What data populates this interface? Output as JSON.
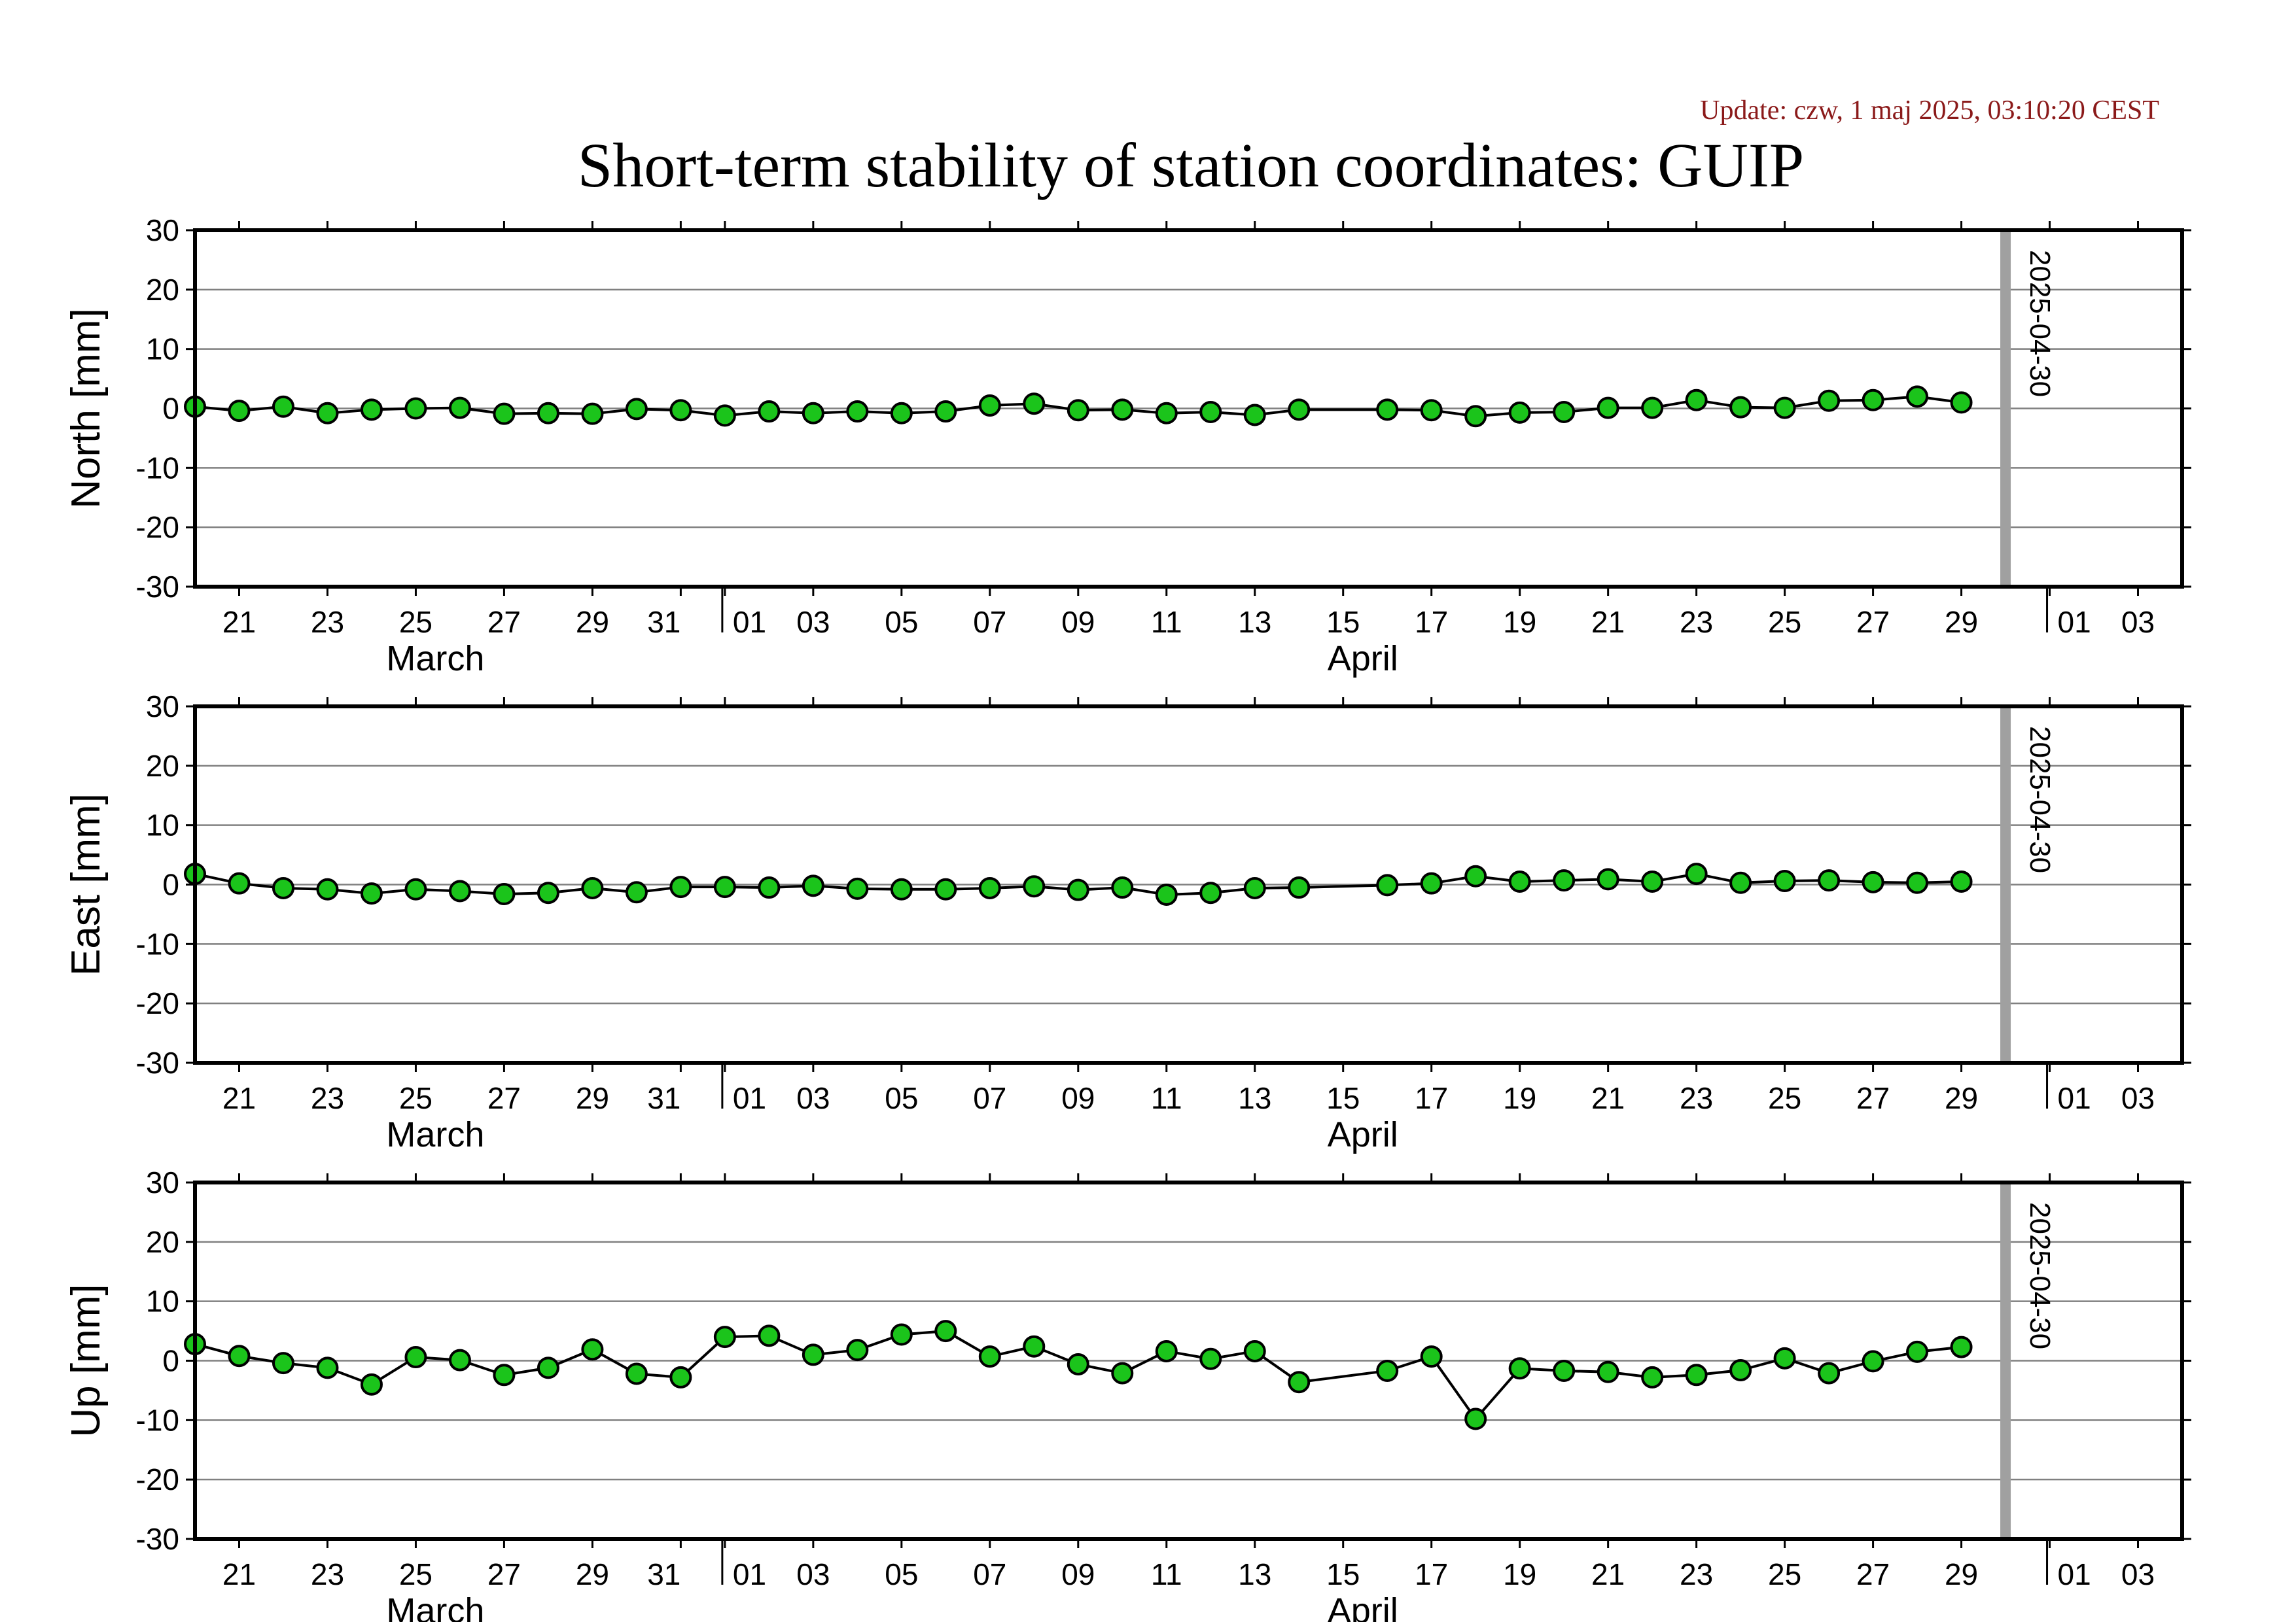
{
  "update_text": "Update: czw, 1 maj 2025, 03:10:20 CEST",
  "title": "Short-term stability of station coordinates: GUIP",
  "colors": {
    "marker_fill": "#1bc41b",
    "marker_edge": "#000000",
    "line": "#000000",
    "grid": "#808080",
    "vline": "#a0a0a0",
    "update_text": "#8b1a1a"
  },
  "x_axis": {
    "range": [
      "2025-03-20",
      "2025-05-04"
    ],
    "tick_labels": [
      {
        "date": "2025-03-21",
        "label": "21"
      },
      {
        "date": "2025-03-23",
        "label": "23"
      },
      {
        "date": "2025-03-25",
        "label": "25"
      },
      {
        "date": "2025-03-27",
        "label": "27"
      },
      {
        "date": "2025-03-29",
        "label": "29"
      },
      {
        "date": "2025-03-31",
        "label": "31"
      },
      {
        "date": "2025-04-01",
        "label": "01"
      },
      {
        "date": "2025-04-03",
        "label": "03"
      },
      {
        "date": "2025-04-05",
        "label": "05"
      },
      {
        "date": "2025-04-07",
        "label": "07"
      },
      {
        "date": "2025-04-09",
        "label": "09"
      },
      {
        "date": "2025-04-11",
        "label": "11"
      },
      {
        "date": "2025-04-13",
        "label": "13"
      },
      {
        "date": "2025-04-15",
        "label": "15"
      },
      {
        "date": "2025-04-17",
        "label": "17"
      },
      {
        "date": "2025-04-19",
        "label": "19"
      },
      {
        "date": "2025-04-21",
        "label": "21"
      },
      {
        "date": "2025-04-23",
        "label": "23"
      },
      {
        "date": "2025-04-25",
        "label": "25"
      },
      {
        "date": "2025-04-27",
        "label": "27"
      },
      {
        "date": "2025-04-29",
        "label": "29"
      },
      {
        "date": "2025-05-01",
        "label": "01"
      },
      {
        "date": "2025-05-03",
        "label": "03"
      }
    ],
    "month_labels": [
      {
        "date": "2025-03-25",
        "label": "March"
      },
      {
        "date": "2025-04-15",
        "label": "April"
      }
    ],
    "month_boundaries": [
      "2025-04-01",
      "2025-05-01"
    ]
  },
  "vline": {
    "date": "2025-04-30",
    "label": "2025-04-30"
  },
  "chart_data": [
    {
      "type": "line",
      "ylabel": "North [mm]",
      "ylim": [
        -30,
        30
      ],
      "yticks": [
        -30,
        -20,
        -10,
        0,
        10,
        20,
        30
      ],
      "grid": true,
      "x": [
        "2025-03-20",
        "2025-03-21",
        "2025-03-22",
        "2025-03-23",
        "2025-03-24",
        "2025-03-25",
        "2025-03-26",
        "2025-03-27",
        "2025-03-28",
        "2025-03-29",
        "2025-03-30",
        "2025-03-31",
        "2025-04-01",
        "2025-04-02",
        "2025-04-03",
        "2025-04-04",
        "2025-04-05",
        "2025-04-06",
        "2025-04-07",
        "2025-04-08",
        "2025-04-09",
        "2025-04-10",
        "2025-04-11",
        "2025-04-12",
        "2025-04-13",
        "2025-04-14",
        "2025-04-16",
        "2025-04-17",
        "2025-04-18",
        "2025-04-19",
        "2025-04-20",
        "2025-04-21",
        "2025-04-22",
        "2025-04-23",
        "2025-04-24",
        "2025-04-25",
        "2025-04-26",
        "2025-04-27",
        "2025-04-28",
        "2025-04-29"
      ],
      "y": [
        0.3,
        -0.4,
        0.3,
        -0.8,
        -0.2,
        0.0,
        0.1,
        -0.9,
        -0.8,
        -0.9,
        -0.1,
        -0.3,
        -1.2,
        -0.5,
        -0.8,
        -0.5,
        -0.8,
        -0.5,
        0.5,
        0.8,
        -0.3,
        -0.2,
        -0.8,
        -0.6,
        -1.1,
        -0.2,
        -0.2,
        -0.3,
        -1.3,
        -0.7,
        -0.6,
        0.1,
        0.1,
        1.4,
        0.2,
        0.1,
        1.3,
        1.4,
        2.0,
        1.0
      ]
    },
    {
      "type": "line",
      "ylabel": "East [mm]",
      "ylim": [
        -30,
        30
      ],
      "yticks": [
        -30,
        -20,
        -10,
        0,
        10,
        20,
        30
      ],
      "grid": true,
      "x": [
        "2025-03-20",
        "2025-03-21",
        "2025-03-22",
        "2025-03-23",
        "2025-03-24",
        "2025-03-25",
        "2025-03-26",
        "2025-03-27",
        "2025-03-28",
        "2025-03-29",
        "2025-03-30",
        "2025-03-31",
        "2025-04-01",
        "2025-04-02",
        "2025-04-03",
        "2025-04-04",
        "2025-04-05",
        "2025-04-06",
        "2025-04-07",
        "2025-04-08",
        "2025-04-09",
        "2025-04-10",
        "2025-04-11",
        "2025-04-12",
        "2025-04-13",
        "2025-04-14",
        "2025-04-16",
        "2025-04-17",
        "2025-04-18",
        "2025-04-19",
        "2025-04-20",
        "2025-04-21",
        "2025-04-22",
        "2025-04-23",
        "2025-04-24",
        "2025-04-25",
        "2025-04-26",
        "2025-04-27",
        "2025-04-28",
        "2025-04-29"
      ],
      "y": [
        1.8,
        0.2,
        -0.6,
        -0.8,
        -1.5,
        -0.8,
        -1.1,
        -1.6,
        -1.4,
        -0.6,
        -1.3,
        -0.4,
        -0.4,
        -0.5,
        -0.2,
        -0.7,
        -0.8,
        -0.8,
        -0.6,
        -0.3,
        -0.9,
        -0.5,
        -1.7,
        -1.4,
        -0.6,
        -0.5,
        -0.1,
        0.2,
        1.4,
        0.5,
        0.7,
        0.9,
        0.5,
        1.8,
        0.3,
        0.6,
        0.7,
        0.4,
        0.3,
        0.5
      ]
    },
    {
      "type": "line",
      "ylabel": "Up [mm]",
      "ylim": [
        -30,
        30
      ],
      "yticks": [
        -30,
        -20,
        -10,
        0,
        10,
        20,
        30
      ],
      "grid": true,
      "x": [
        "2025-03-20",
        "2025-03-21",
        "2025-03-22",
        "2025-03-23",
        "2025-03-24",
        "2025-03-25",
        "2025-03-26",
        "2025-03-27",
        "2025-03-28",
        "2025-03-29",
        "2025-03-30",
        "2025-03-31",
        "2025-04-01",
        "2025-04-02",
        "2025-04-03",
        "2025-04-04",
        "2025-04-05",
        "2025-04-06",
        "2025-04-07",
        "2025-04-08",
        "2025-04-09",
        "2025-04-10",
        "2025-04-11",
        "2025-04-12",
        "2025-04-13",
        "2025-04-14",
        "2025-04-16",
        "2025-04-17",
        "2025-04-18",
        "2025-04-19",
        "2025-04-20",
        "2025-04-21",
        "2025-04-22",
        "2025-04-23",
        "2025-04-24",
        "2025-04-25",
        "2025-04-26",
        "2025-04-27",
        "2025-04-28",
        "2025-04-29"
      ],
      "y": [
        2.8,
        0.8,
        -0.4,
        -1.2,
        -4.0,
        0.6,
        0.1,
        -2.4,
        -1.2,
        1.9,
        -2.2,
        -2.8,
        4.0,
        4.2,
        1.0,
        1.8,
        4.4,
        5.0,
        0.7,
        2.4,
        -0.6,
        -2.1,
        1.6,
        0.3,
        1.6,
        -3.6,
        -1.7,
        0.7,
        -9.8,
        -1.3,
        -1.7,
        -1.9,
        -2.8,
        -2.4,
        -1.6,
        0.4,
        -2.1,
        -0.1,
        1.5,
        2.3
      ]
    }
  ]
}
